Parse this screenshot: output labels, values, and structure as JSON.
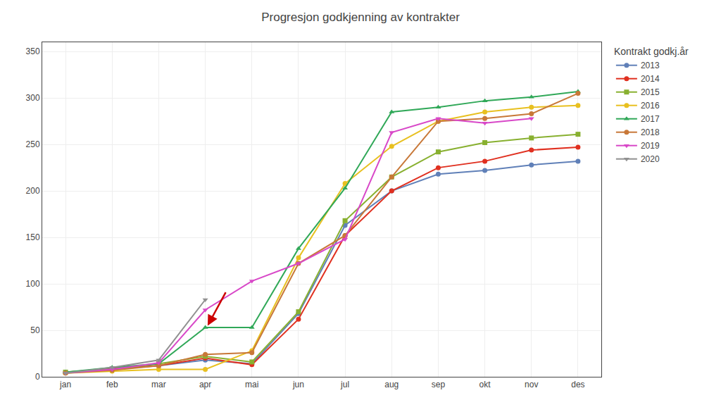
{
  "chart_data": {
    "type": "line",
    "title": "Progresjon godkjenning av kontrakter",
    "legend_title": "Kontrakt godkj.år",
    "categories": [
      "jan",
      "feb",
      "mar",
      "apr",
      "mai",
      "jun",
      "jul",
      "aug",
      "sep",
      "okt",
      "nov",
      "des"
    ],
    "series": [
      {
        "name": "2013",
        "color": "#6080b8",
        "marker": "circle",
        "values": [
          5,
          8,
          12,
          18,
          14,
          68,
          163,
          200,
          218,
          222,
          228,
          232
        ]
      },
      {
        "name": "2014",
        "color": "#e03020",
        "marker": "circle",
        "values": [
          5,
          9,
          12,
          20,
          13,
          62,
          152,
          200,
          225,
          232,
          244,
          247
        ]
      },
      {
        "name": "2015",
        "color": "#88b030",
        "marker": "square",
        "values": [
          5,
          8,
          14,
          22,
          16,
          70,
          168,
          215,
          242,
          252,
          257,
          261
        ]
      },
      {
        "name": "2016",
        "color": "#e8c020",
        "marker": "circle",
        "values": [
          4,
          6,
          8,
          8,
          28,
          128,
          208,
          248,
          275,
          285,
          290,
          292
        ]
      },
      {
        "name": "2017",
        "color": "#30a858",
        "marker": "triangle-up",
        "values": [
          5,
          10,
          14,
          53,
          53,
          138,
          203,
          285,
          290,
          297,
          301,
          307
        ]
      },
      {
        "name": "2018",
        "color": "#c87838",
        "marker": "circle",
        "values": [
          4,
          7,
          12,
          24,
          26,
          122,
          152,
          215,
          275,
          278,
          283,
          305
        ]
      },
      {
        "name": "2019",
        "color": "#d848c8",
        "marker": "triangle-down",
        "values": [
          4,
          8,
          15,
          72,
          103,
          122,
          148,
          263,
          278,
          273,
          278,
          null
        ]
      },
      {
        "name": "2020",
        "color": "#909090",
        "marker": "triangle-down",
        "values": [
          4,
          10,
          18,
          83,
          null,
          null,
          null,
          null,
          null,
          null,
          null,
          null
        ]
      }
    ],
    "ylim": [
      0,
      360
    ],
    "yticks": [
      0,
      50,
      100,
      150,
      200,
      250,
      300,
      350
    ],
    "grid": true,
    "legend": "right",
    "annotations": [
      {
        "type": "arrow",
        "x_start": 3.45,
        "y_start": 92,
        "x_end": 3.05,
        "y_end": 55,
        "color": "#cc0000"
      }
    ]
  }
}
